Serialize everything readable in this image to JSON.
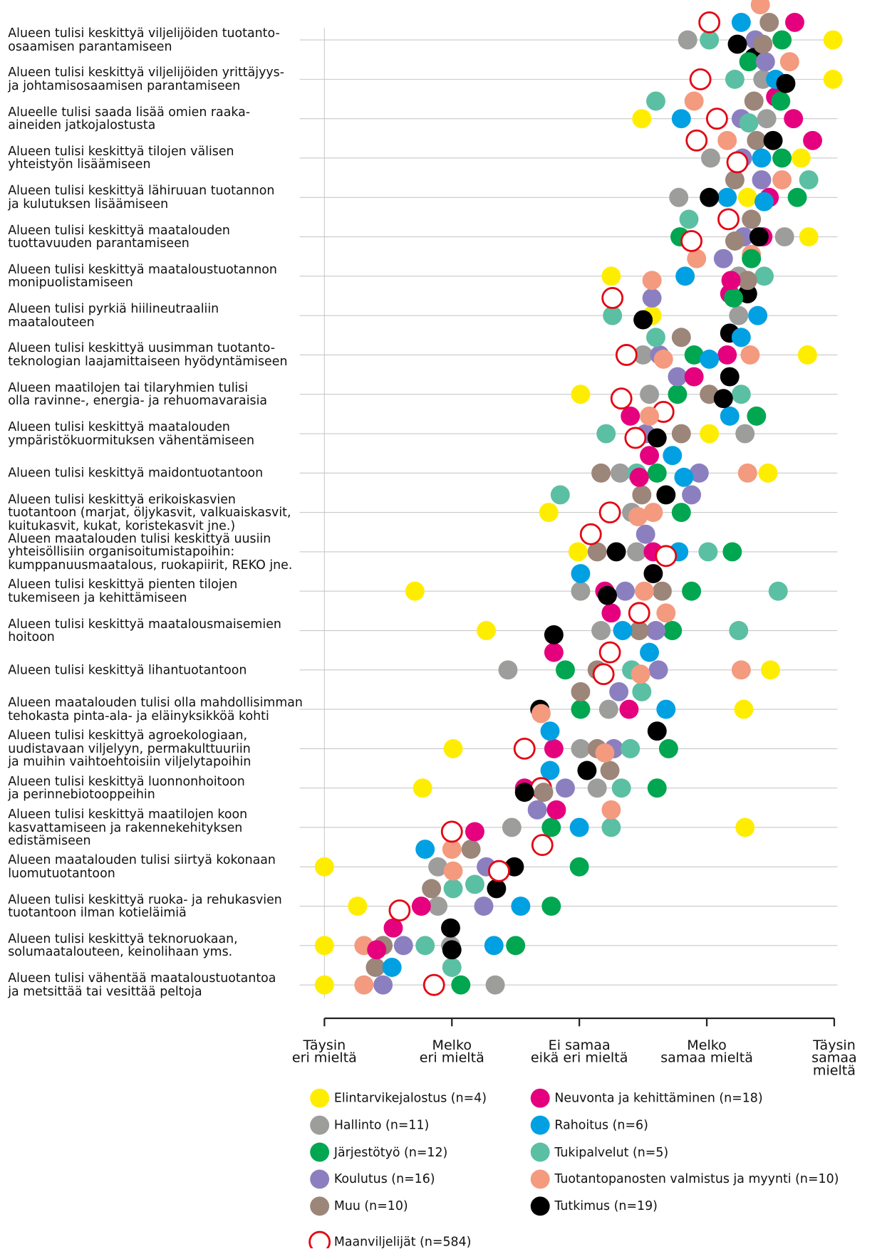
{
  "chart_data": {
    "type": "dot",
    "categories": [
      "Alueen tulisi keskittyä viljelijöiden tuotanto-\nosaamisen parantamiseen",
      "Alueen tulisi keskittyä viljelijöiden yrittäjyys-\nja johtamisosaamisen parantamiseen",
      "Alueelle tulisi saada lisää omien raaka-\naineiden jatkojalostusta",
      "Alueen tulisi keskittyä tilojen välisen\nyhteistyön lisäämiseen",
      "Alueen tulisi keskittyä lähiruuan tuotannon\nja kulutuksen lisäämiseen",
      "Alueen tulisi keskittyä maatalouden\ntuottavuuden parantamiseen",
      "Alueen tulisi keskittyä maataloustuotannon\nmonipuolistamiseen",
      "Alueen tulisi pyrkiä hiilineutraaliin\nmaatalouteen",
      "Alueen tulisi keskittyä uusimman tuotanto-\nteknologian laajamittaiseen hyödyntämiseen",
      "Alueen maatilojen tai tilaryhmien tulisi\nolla ravinne-, energia- ja rehuomavaraisia",
      "Alueen tulisi keskittyä maatalouden\nympäristökuormituksen vähentämiseen",
      "Alueen tulisi keskittyä maidontuotantoon",
      "Alueen tulisi keskittyä erikoiskasvien\ntuotantoon (marjat, öljykasvit, valkuaiskasvit,\nkuitukasvit, kukat, koristekasvit jne.)",
      "Alueen maatalouden tulisi keskittyä uusiin\nyhteisöllisiin organisoitumistapoihin:\nkumppanuusmaatalous, ruokapiirit, REKO jne.",
      "Alueen tulisi keskittyä pienten tilojen\ntukemiseen ja kehittämiseen",
      "Alueen tulisi keskittyä maatalousmaisemien\nhoitoon",
      "Alueen tulisi keskittyä lihantuotantoon",
      "Alueen maatalouden tulisi olla mahdollisimman\ntehokasta pinta-ala- ja eläinyksikköä kohti",
      "Alueen tulisi keskittyä agroekologiaan,\nuudistavaan viljelyyn, permakulttuuriin\nja muihin vaihtoehtoisiin viljelytapoihin",
      "Alueen tulisi keskittyä luonnonhoitoon\nja perinnebiotooppeihin",
      "Alueen tulisi keskittyä maatilojen koon\nkasvattamiseen ja rakennekehityksen\nedistämiseen",
      "Alueen maatalouden tulisi siirtyä kokonaan\nluomutuotantoon",
      "Alueen tulisi keskittyä ruoka- ja rehukasvien\ntuotantoon ilman kotieläimiä",
      "Alueen tulisi keskittyä teknoruokaan,\nsolumaatalouteen, keinolihaan yms.",
      "Alueen tulisi vähentää maataloustuotantoa\nja metsittää tai vesittää peltoja"
    ],
    "series": [
      {
        "name": "Elintarvikejalostus (n=4)",
        "color": "#ffed00",
        "values": [
          4.99,
          4.99,
          3.49,
          4.74,
          4.32,
          4.8,
          3.25,
          3.57,
          4.79,
          3.01,
          4.02,
          4.48,
          2.76,
          2.99,
          1.71,
          2.27,
          4.5,
          4.29,
          2.01,
          1.77,
          4.3,
          1.0,
          1.26,
          1.0,
          1.0
        ]
      },
      {
        "name": "Hallinto (n=11)",
        "color": "#9d9d9c",
        "values": [
          3.85,
          4.44,
          4.47,
          4.03,
          3.78,
          4.61,
          4.25,
          4.25,
          3.5,
          3.55,
          4.3,
          3.32,
          3.41,
          3.45,
          3.01,
          3.17,
          2.44,
          3.23,
          3.01,
          3.14,
          2.47,
          1.89,
          1.89,
          1.99,
          2.34
        ]
      },
      {
        "name": "Järjestötyö (n=12)",
        "color": "#00a650",
        "values": [
          4.59,
          4.33,
          4.58,
          4.59,
          4.71,
          3.79,
          4.35,
          4.21,
          3.9,
          3.77,
          4.39,
          3.61,
          3.8,
          4.2,
          3.88,
          3.73,
          2.89,
          3.01,
          3.7,
          3.61,
          2.78,
          3.0,
          2.78,
          2.5,
          2.07
        ]
      },
      {
        "name": "Koulutus (n=16)",
        "color": "#8c7fc0",
        "values": [
          4.38,
          4.46,
          4.27,
          4.28,
          4.43,
          4.29,
          4.13,
          3.57,
          3.63,
          3.77,
          3.52,
          3.94,
          3.88,
          3.52,
          3.36,
          3.6,
          3.62,
          3.31,
          3.27,
          2.89,
          2.67,
          2.27,
          2.25,
          1.62,
          1.46
        ]
      },
      {
        "name": "Muu (n=10)",
        "color": "#9c8579",
        "values": [
          4.49,
          4.44,
          4.37,
          4.39,
          4.22,
          4.35,
          4.22,
          4.32,
          3.8,
          4.02,
          3.8,
          3.17,
          3.49,
          3.14,
          3.65,
          3.47,
          3.14,
          3.01,
          3.14,
          3.24,
          2.72,
          2.15,
          1.84,
          1.46,
          1.4
        ]
      },
      {
        "name": "Neuvonta ja kehittäminen (n=18)",
        "color": "#e5007e",
        "values": [
          4.69,
          4.54,
          4.68,
          4.83,
          4.49,
          4.44,
          4.18,
          4.19,
          4.16,
          3.9,
          3.4,
          3.55,
          3.47,
          3.58,
          3.2,
          3.25,
          2.8,
          3.39,
          2.8,
          2.57,
          2.82,
          2.18,
          1.76,
          1.54,
          1.41
        ]
      },
      {
        "name": "Rahoitus (n=6)",
        "color": "#00a0e3",
        "values": [
          4.27,
          4.54,
          3.8,
          4.43,
          4.16,
          4.45,
          3.83,
          4.4,
          4.27,
          4.02,
          4.18,
          3.73,
          3.82,
          3.78,
          3.01,
          3.34,
          3.55,
          3.68,
          2.77,
          2.77,
          3.0,
          1.79,
          2.54,
          2.33,
          1.53
        ]
      },
      {
        "name": "Tukipalvelut (n=5)",
        "color": "#5bbfa3",
        "values": [
          4.02,
          4.22,
          3.6,
          4.33,
          4.8,
          3.86,
          4.45,
          3.26,
          3.6,
          4.27,
          3.21,
          3.45,
          2.85,
          4.01,
          4.56,
          4.25,
          3.41,
          3.49,
          3.4,
          3.33,
          3.25,
          2.18,
          2.01,
          1.79,
          2.0
        ]
      },
      {
        "name": "Tuotantopanosten valmistus ja myynti (n=10)",
        "color": "#f39a7f",
        "values": [
          4.42,
          4.65,
          3.9,
          4.16,
          4.59,
          4.35,
          3.92,
          3.57,
          4.34,
          3.66,
          3.55,
          4.32,
          3.58,
          3.46,
          3.51,
          3.68,
          4.27,
          3.48,
          2.7,
          3.2,
          3.25,
          2.0,
          2.01,
          1.31,
          1.31
        ]
      },
      {
        "name": "Tutkimus (n=19)",
        "color": "#000000",
        "values": [
          4.37,
          4.24,
          4.62,
          4.52,
          4.02,
          4.41,
          4.32,
          4.18,
          3.5,
          4.18,
          4.13,
          3.61,
          3.68,
          3.29,
          3.58,
          3.22,
          2.8,
          2.69,
          3.61,
          3.06,
          2.57,
          2.49,
          2.35,
          1.99,
          2.0
        ]
      },
      {
        "name": "Maanviljelijät (n=584)",
        "color": "#e30613",
        "hollow": true,
        "values": [
          4.02,
          3.95,
          4.08,
          3.92,
          4.24,
          4.17,
          3.88,
          3.26,
          3.37,
          3.66,
          3.33,
          3.44,
          3.24,
          3.09,
          3.68,
          3.47,
          3.24,
          3.19,
          2.57,
          2.7,
          2.71,
          2.0,
          2.37,
          1.59,
          1.86
        ]
      }
    ],
    "xlim": [
      1,
      5
    ],
    "xticks": [
      {
        "value": 1,
        "label": "Täysin\neri mieltä"
      },
      {
        "value": 2,
        "label": "Melko\neri mieltä"
      },
      {
        "value": 3,
        "label": "Ei samaa\neikä eri mieltä"
      },
      {
        "value": 4,
        "label": "Melko\nsamaa mieltä"
      },
      {
        "value": 5,
        "label": "Täysin\nsamaa mieltä"
      }
    ]
  }
}
